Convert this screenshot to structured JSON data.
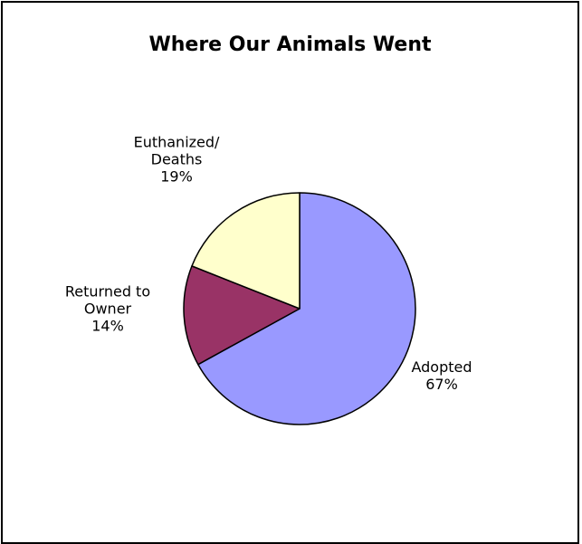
{
  "chart_data": {
    "type": "pie",
    "title": "Where Our Animals Went",
    "start_angle_deg": 0,
    "direction": "clockwise",
    "slices": [
      {
        "label_lines": [
          "Adopted"
        ],
        "percent_label": "67%",
        "value": 67,
        "color": "#9999FF"
      },
      {
        "label_lines": [
          "Returned to",
          "Owner"
        ],
        "percent_label": "14%",
        "value": 14,
        "color": "#993366"
      },
      {
        "label_lines": [
          "Euthanized/",
          "Deaths"
        ],
        "percent_label": "19%",
        "value": 19,
        "color": "#FFFFCC"
      }
    ]
  }
}
